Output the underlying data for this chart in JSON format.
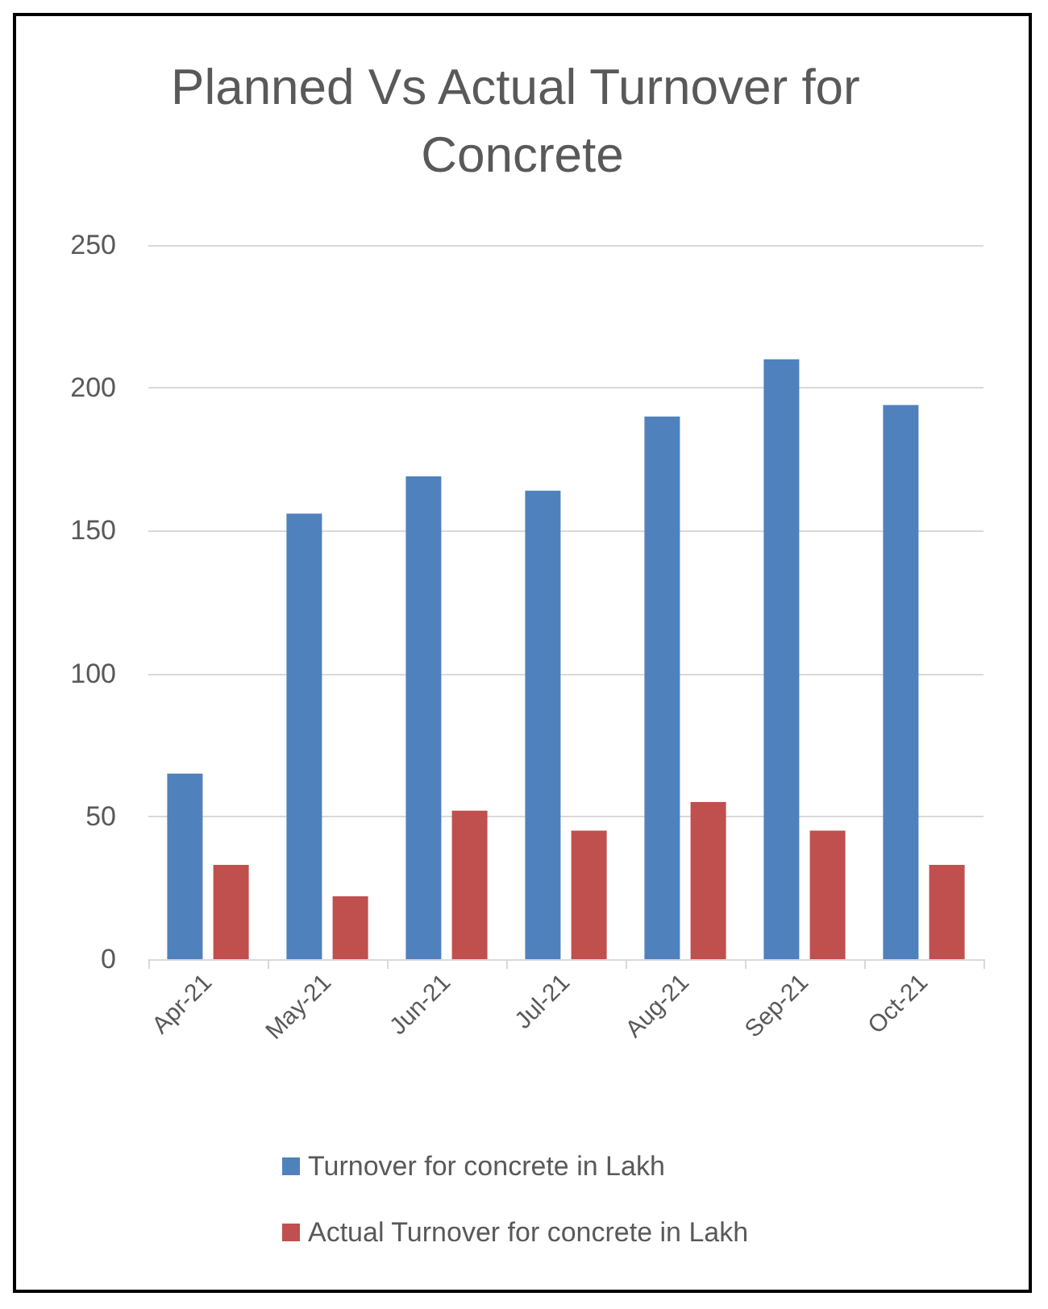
{
  "chart_data": {
    "type": "bar",
    "title": "Planned Vs Actual Turnover for Concrete",
    "categories": [
      "Apr-21",
      "May-21",
      "Jun-21",
      "Jul-21",
      "Aug-21",
      "Sep-21",
      "Oct-21"
    ],
    "series": [
      {
        "name": "Turnover for concrete in Lakh",
        "color": "#4f81bd",
        "values": [
          65,
          156,
          169,
          164,
          190,
          210,
          194
        ]
      },
      {
        "name": "Actual Turnover for concrete in Lakh",
        "color": "#c0504d",
        "values": [
          33,
          22,
          52,
          45,
          55,
          45,
          33
        ]
      }
    ],
    "ylim": [
      0,
      250
    ],
    "yticks": [
      0,
      50,
      100,
      150,
      200,
      250
    ],
    "grid": "y",
    "legend": "bottom"
  }
}
